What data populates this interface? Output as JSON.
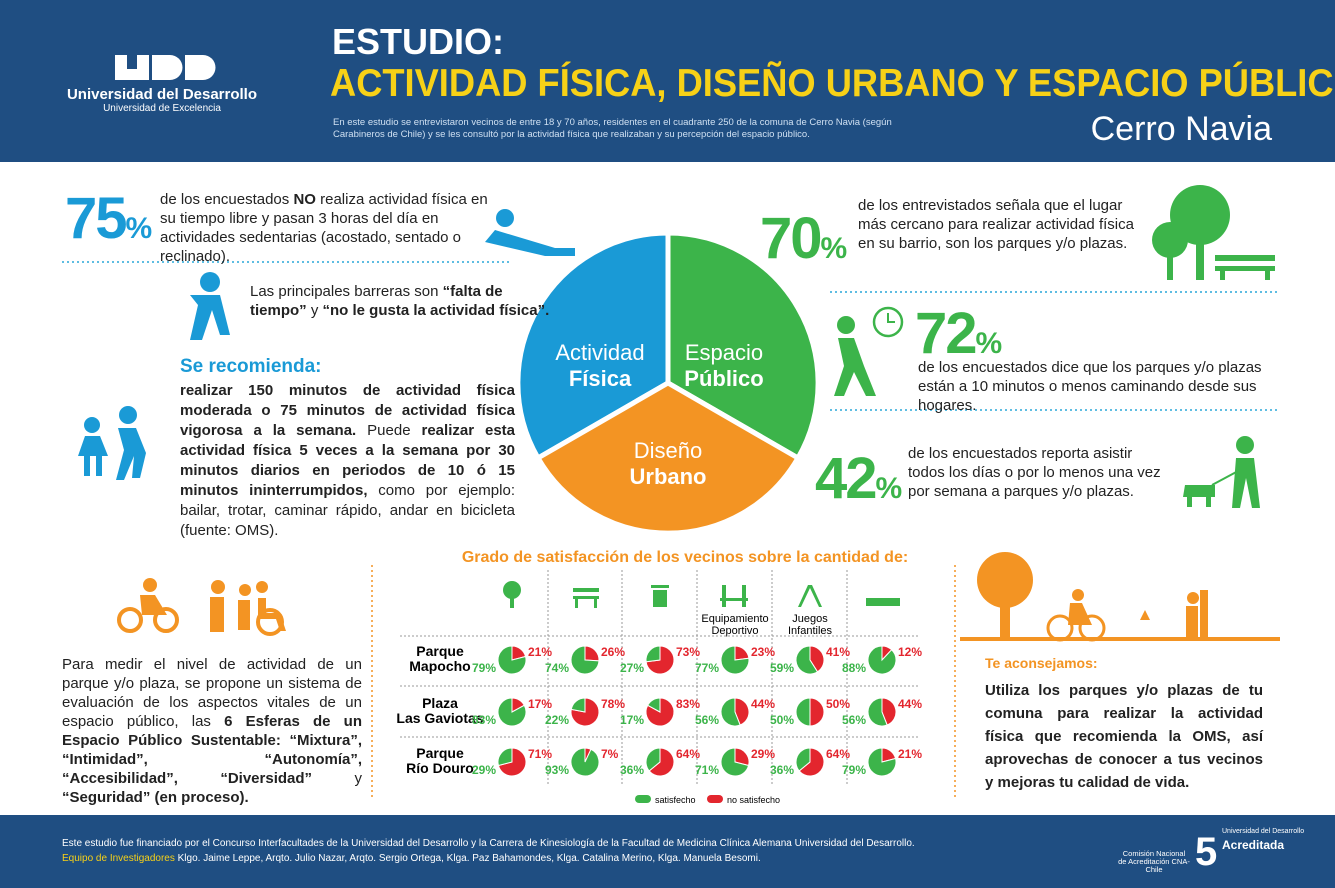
{
  "header": {
    "logo_name": "Universidad del Desarrollo",
    "logo_sub": "Universidad de Excelencia",
    "kicker": "ESTUDIO:",
    "title": "ACTIVIDAD FÍSICA, DISEÑO URBANO Y ESPACIO PÚBLICO",
    "intro": "En este estudio se entrevistaron vecinos de entre 18 y 70 años, residentes en el cuadrante 250 de la comuna de Cerro Navia (según Carabineros de Chile) y se les consultó por la actividad física que realizaban y su percepción del espacio público.",
    "place": "Cerro Navia"
  },
  "stats": [
    {
      "number": "75",
      "unit": "%",
      "text": [
        {
          "text": "de los encuestados ",
          "bold": false
        },
        {
          "text": "NO",
          "bold": true
        },
        {
          "text": " realiza actividad física en su tiempo libre y pasan 3 horas del día en actividades sedentarias (acostado, sentado o reclinado).",
          "bold": false
        }
      ]
    },
    {
      "number": "70",
      "unit": "%",
      "text": [
        {
          "text": "de los entrevistados señala que el lugar más cercano para realizar actividad física en su barrio, son los parques y/o plazas.",
          "bold": false
        }
      ]
    },
    {
      "number": "72",
      "unit": "%",
      "text": [
        {
          "text": "de los encuestados dice que los parques y/o plazas están a 10 minutos o menos caminando desde sus hogares.",
          "bold": false
        }
      ]
    },
    {
      "number": "42",
      "unit": "%",
      "text": [
        {
          "text": "de los encuestados reporta asistir todos los días o por lo menos una vez por semana a parques y/o plazas.",
          "bold": false
        }
      ]
    }
  ],
  "barriers": [
    {
      "text": "Las principales barreras son ",
      "bold": false
    },
    {
      "text": "“falta de tiempo”",
      "bold": true
    },
    {
      "text": " y ",
      "bold": false
    },
    {
      "text": "“no le gusta la actividad física”.",
      "bold": true
    }
  ],
  "recommendation": {
    "title": "Se recomienda:",
    "text": [
      {
        "text": "realizar 150 minutos de actividad física moderada o 75 minutos de actividad física vigorosa a la semana.",
        "bold": true
      },
      {
        "text": " Puede ",
        "bold": false
      },
      {
        "text": "realizar esta actividad física 5 veces a la semana por 30 minutos diarios en periodos de 10 ó 15 minutos ininterrumpidos,",
        "bold": true
      },
      {
        "text": " como por ejemplo: bailar, trotar, caminar rápido, andar en bicicleta (fuente: OMS).",
        "bold": false
      }
    ]
  },
  "center": [
    {
      "line1": "Actividad",
      "line2": "Física"
    },
    {
      "line1": "Espacio",
      "line2": "Público"
    },
    {
      "line1": "Diseño",
      "line2": "Urbano"
    }
  ],
  "evaluation": [
    {
      "text": "Para medir el nivel de actividad de un parque y/o plaza, se propone un sistema de evaluación de los aspectos vitales de un espacio público, las ",
      "bold": false
    },
    {
      "text": "6 Esferas de un Espacio Público Sustentable: “Mixtura”, “Intimidad”, “Autonomía”, “Accesibilidad”, “Diversidad”",
      "bold": true
    },
    {
      "text": " y ",
      "bold": false
    },
    {
      "text": "“Seguridad” (en proceso).",
      "bold": true
    }
  ],
  "satisfaction": {
    "title": "Grado de satisfacción de los vecinos sobre la cantidad de:",
    "columns": [
      "Árboles",
      "Bancas",
      "Basureros",
      "Equipamiento Deportivo",
      "Juegos Infantiles",
      "Pasto"
    ],
    "colors": [
      "#3cb44a",
      "#e3262e"
    ],
    "legend": [
      "satisfecho",
      "no satisfecho"
    ],
    "rows": [
      {
        "name": "Parque Mapocho",
        "satisfied": [
          79,
          74,
          27,
          77,
          59,
          88
        ],
        "satisfied_labels": [
          "79%",
          "74%",
          "27%",
          "77%",
          "59%",
          "88%"
        ],
        "unsatisfied": [
          21,
          26,
          73,
          23,
          41,
          12
        ],
        "unsatisfied_labels": [
          "21%",
          "26%",
          "73%",
          "23%",
          "41%",
          "12%"
        ]
      },
      {
        "name": "Plaza Las Gaviotas",
        "satisfied": [
          83,
          22,
          17,
          56,
          50,
          56
        ],
        "satisfied_labels": [
          "83%",
          "22%",
          "17%",
          "56%",
          "50%",
          "56%"
        ],
        "unsatisfied": [
          17,
          78,
          83,
          44,
          50,
          44
        ],
        "unsatisfied_labels": [
          "17%",
          "78%",
          "83%",
          "44%",
          "50%",
          "44%"
        ]
      },
      {
        "name": "Parque Río Douro",
        "satisfied": [
          29,
          93,
          36,
          71,
          36,
          79
        ],
        "satisfied_labels": [
          "29%",
          "93%",
          "36%",
          "71%",
          "36%",
          "79%"
        ],
        "unsatisfied": [
          71,
          7,
          64,
          29,
          64,
          21
        ],
        "unsatisfied_labels": [
          "71%",
          "7%",
          "64%",
          "29%",
          "64%",
          "21%"
        ]
      }
    ]
  },
  "advice": {
    "title": "Te aconsejamos:",
    "text": "Utiliza los parques y/o plazas de tu comuna para realizar la actividad física que recomienda la OMS, así aprovechas de conocer a tus vecinos y mejoras tu calidad de vida."
  },
  "footer": {
    "funding": "Este estudio fue financiado por el Concurso Interfacultades de la Universidad del Desarrollo y la Carrera de Kinesiología de la Facultad de Medicina Clínica Alemana Universidad del Desarrollo.",
    "team_label": "Equipo de Investigadores",
    "team": " Klgo. Jaime Leppe, Arqto. Julio Nazar, Arqto. Sergio Ortega, Klga. Paz Bahamondes, Klga. Catalina Merino, Klga. Manuela Besomi.",
    "cna": "Comisión Nacional de Acreditación CNA-Chile",
    "acc_uni": "Universidad del Desarrollo",
    "acc_years": "5",
    "acc_label": "Acreditada"
  }
}
